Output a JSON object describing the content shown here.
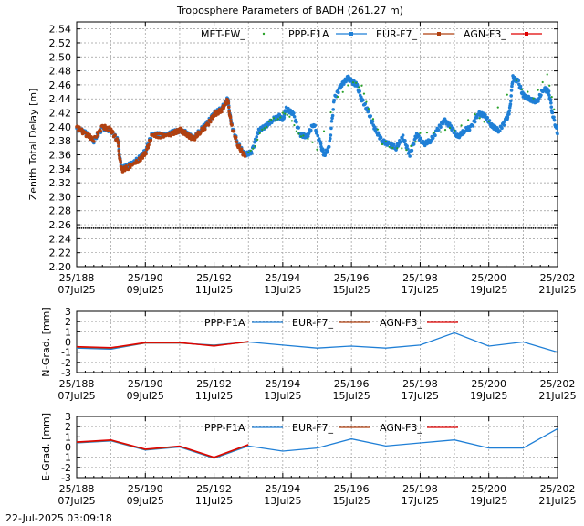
{
  "footer": {
    "timestamp": "22-Jul-2025 03:09:18"
  },
  "colors": {
    "met": "#2aa22a",
    "ppp": "#1f7fd6",
    "eur": "#b04010",
    "agn": "#e00000",
    "ref": "#000000",
    "grid": "#9a9a9a"
  },
  "chart_data": [
    {
      "id": "ztd",
      "type": "line",
      "title": "Troposphere Parameters of BADH (261.27 m)",
      "ylabel": "Zenith Total Delay [m]",
      "xlim": [
        0,
        14
      ],
      "ylim": [
        2.2,
        2.55
      ],
      "yticks": [
        2.2,
        2.22,
        2.24,
        2.26,
        2.28,
        2.3,
        2.32,
        2.34,
        2.36,
        2.38,
        2.4,
        2.42,
        2.44,
        2.46,
        2.48,
        2.5,
        2.52,
        2.54
      ],
      "xticks": [
        {
          "x": 0,
          "line1": "25/188",
          "line2": "07Jul25"
        },
        {
          "x": 2,
          "line1": "25/190",
          "line2": "09Jul25"
        },
        {
          "x": 4,
          "line1": "25/192",
          "line2": "11Jul25"
        },
        {
          "x": 6,
          "line1": "25/194",
          "line2": "13Jul25"
        },
        {
          "x": 8,
          "line1": "25/196",
          "line2": "15Jul25"
        },
        {
          "x": 10,
          "line1": "25/198",
          "line2": "17Jul25"
        },
        {
          "x": 12,
          "line1": "25/200",
          "line2": "19Jul25"
        },
        {
          "x": 14,
          "line1": "25/202",
          "line2": "21Jul25"
        }
      ],
      "grid": true,
      "legend": [
        {
          "label": "MET-FW_",
          "style": "dots",
          "color": "#2aa22a"
        },
        {
          "label": "PPP-F1A",
          "style": "line-marker",
          "color": "#1f7fd6"
        },
        {
          "label": "EUR-F7_",
          "style": "line-marker",
          "color": "#b04010"
        },
        {
          "label": "AGN-F3_",
          "style": "line-marker",
          "color": "#e00000"
        }
      ],
      "reference_line": {
        "y": 2.255,
        "style": "dots"
      },
      "series": [
        {
          "name": "PPP-F1A",
          "style": "markers",
          "color": "#1f7fd6",
          "points": [
            [
              0.0,
              2.398
            ],
            [
              0.25,
              2.392
            ],
            [
              0.5,
              2.38
            ],
            [
              0.75,
              2.398
            ],
            [
              1.0,
              2.395
            ],
            [
              1.2,
              2.38
            ],
            [
              1.3,
              2.34
            ],
            [
              1.5,
              2.345
            ],
            [
              1.8,
              2.355
            ],
            [
              2.0,
              2.365
            ],
            [
              2.2,
              2.39
            ],
            [
              2.5,
              2.388
            ],
            [
              2.8,
              2.392
            ],
            [
              3.0,
              2.395
            ],
            [
              3.2,
              2.392
            ],
            [
              3.4,
              2.383
            ],
            [
              3.6,
              2.395
            ],
            [
              3.8,
              2.405
            ],
            [
              4.0,
              2.42
            ],
            [
              4.2,
              2.425
            ],
            [
              4.4,
              2.44
            ],
            [
              4.5,
              2.405
            ],
            [
              4.7,
              2.375
            ],
            [
              4.9,
              2.36
            ],
            [
              5.1,
              2.365
            ],
            [
              5.3,
              2.395
            ],
            [
              5.5,
              2.4
            ],
            [
              5.7,
              2.41
            ],
            [
              5.9,
              2.415
            ],
            [
              6.0,
              2.41
            ],
            [
              6.1,
              2.425
            ],
            [
              6.3,
              2.42
            ],
            [
              6.5,
              2.39
            ],
            [
              6.7,
              2.385
            ],
            [
              6.9,
              2.405
            ],
            [
              7.1,
              2.375
            ],
            [
              7.2,
              2.36
            ],
            [
              7.35,
              2.37
            ],
            [
              7.5,
              2.44
            ],
            [
              7.7,
              2.46
            ],
            [
              7.9,
              2.47
            ],
            [
              8.0,
              2.465
            ],
            [
              8.15,
              2.46
            ],
            [
              8.3,
              2.44
            ],
            [
              8.5,
              2.42
            ],
            [
              8.7,
              2.395
            ],
            [
              8.9,
              2.38
            ],
            [
              9.1,
              2.375
            ],
            [
              9.3,
              2.37
            ],
            [
              9.5,
              2.385
            ],
            [
              9.7,
              2.36
            ],
            [
              9.9,
              2.39
            ],
            [
              10.1,
              2.375
            ],
            [
              10.3,
              2.38
            ],
            [
              10.5,
              2.395
            ],
            [
              10.7,
              2.41
            ],
            [
              10.9,
              2.4
            ],
            [
              11.1,
              2.385
            ],
            [
              11.3,
              2.395
            ],
            [
              11.5,
              2.4
            ],
            [
              11.7,
              2.42
            ],
            [
              11.9,
              2.415
            ],
            [
              12.1,
              2.4
            ],
            [
              12.3,
              2.395
            ],
            [
              12.5,
              2.41
            ],
            [
              12.6,
              2.42
            ],
            [
              12.7,
              2.47
            ],
            [
              12.85,
              2.465
            ],
            [
              13.0,
              2.445
            ],
            [
              13.2,
              2.44
            ],
            [
              13.4,
              2.435
            ],
            [
              13.6,
              2.455
            ],
            [
              13.75,
              2.45
            ],
            [
              13.85,
              2.42
            ],
            [
              14.0,
              2.39
            ]
          ]
        },
        {
          "name": "EUR-F7_",
          "style": "markers",
          "color": "#b04010",
          "points": [
            [
              0.0,
              2.4
            ],
            [
              0.25,
              2.39
            ],
            [
              0.5,
              2.382
            ],
            [
              0.75,
              2.4
            ],
            [
              1.0,
              2.396
            ],
            [
              1.2,
              2.378
            ],
            [
              1.3,
              2.338
            ],
            [
              1.5,
              2.342
            ],
            [
              1.8,
              2.352
            ],
            [
              2.0,
              2.362
            ],
            [
              2.2,
              2.388
            ],
            [
              2.5,
              2.387
            ],
            [
              2.8,
              2.39
            ],
            [
              3.0,
              2.396
            ],
            [
              3.2,
              2.39
            ],
            [
              3.4,
              2.382
            ],
            [
              3.6,
              2.393
            ],
            [
              3.8,
              2.402
            ],
            [
              4.0,
              2.418
            ],
            [
              4.2,
              2.423
            ],
            [
              4.4,
              2.438
            ],
            [
              4.5,
              2.403
            ],
            [
              4.7,
              2.373
            ],
            [
              4.9,
              2.358
            ]
          ]
        },
        {
          "name": "MET-FW_",
          "style": "dots",
          "color": "#2aa22a",
          "points": [
            [
              5.0,
              2.362
            ],
            [
              5.2,
              2.372
            ],
            [
              5.4,
              2.398
            ],
            [
              5.6,
              2.405
            ],
            [
              5.8,
              2.412
            ],
            [
              6.0,
              2.418
            ],
            [
              6.2,
              2.415
            ],
            [
              6.4,
              2.395
            ],
            [
              6.6,
              2.385
            ],
            [
              7.0,
              2.37
            ],
            [
              7.6,
              2.445
            ],
            [
              8.05,
              2.462
            ],
            [
              8.3,
              2.458
            ],
            [
              8.5,
              2.425
            ],
            [
              8.9,
              2.378
            ],
            [
              9.2,
              2.372
            ],
            [
              9.6,
              2.368
            ],
            [
              10.0,
              2.388
            ],
            [
              10.6,
              2.392
            ],
            [
              11.0,
              2.398
            ],
            [
              11.6,
              2.418
            ],
            [
              12.0,
              2.405
            ],
            [
              12.8,
              2.465
            ],
            [
              13.3,
              2.438
            ],
            [
              13.7,
              2.475
            ],
            [
              13.9,
              2.425
            ]
          ]
        }
      ]
    },
    {
      "id": "ngrad",
      "type": "line",
      "ylabel": "N-Grad. [mm]",
      "xlim": [
        0,
        14
      ],
      "ylim": [
        -3,
        3
      ],
      "yticks": [
        -3,
        -2,
        -1,
        0,
        1,
        2,
        3
      ],
      "zero_line": true,
      "legend": [
        {
          "label": "PPP-F1A",
          "style": "line",
          "color": "#1f7fd6"
        },
        {
          "label": "EUR-F7_",
          "style": "line",
          "color": "#b04010"
        },
        {
          "label": "AGN-F3_",
          "style": "line",
          "color": "#e00000"
        }
      ],
      "series": [
        {
          "name": "PPP-F1A",
          "style": "line",
          "color": "#1f7fd6",
          "points": [
            [
              0,
              -0.6
            ],
            [
              1,
              -0.7
            ],
            [
              2,
              -0.1
            ],
            [
              3,
              -0.1
            ],
            [
              4,
              -0.3
            ],
            [
              5,
              0.0
            ],
            [
              6,
              -0.3
            ],
            [
              7,
              -0.6
            ],
            [
              8,
              -0.4
            ],
            [
              9,
              -0.6
            ],
            [
              10,
              -0.3
            ],
            [
              11,
              0.9
            ],
            [
              12,
              -0.4
            ],
            [
              13,
              0.0
            ],
            [
              14,
              -1.0
            ]
          ]
        },
        {
          "name": "EUR-F7_",
          "style": "line",
          "color": "#b04010",
          "points": [
            [
              0,
              -0.5
            ],
            [
              1,
              -0.6
            ],
            [
              2,
              -0.1
            ],
            [
              3,
              -0.1
            ],
            [
              4,
              -0.35
            ],
            [
              5,
              0.0
            ]
          ]
        },
        {
          "name": "AGN-F3_",
          "style": "line",
          "color": "#e00000",
          "points": [
            [
              0,
              -0.45
            ],
            [
              1,
              -0.55
            ],
            [
              2,
              -0.05
            ],
            [
              3,
              -0.05
            ],
            [
              4,
              -0.4
            ],
            [
              5,
              0.05
            ]
          ]
        }
      ]
    },
    {
      "id": "egrad",
      "type": "line",
      "ylabel": "E-Grad. [mm]",
      "xlim": [
        0,
        14
      ],
      "ylim": [
        -3,
        3
      ],
      "yticks": [
        -3,
        -2,
        -1,
        0,
        1,
        2,
        3
      ],
      "zero_line": true,
      "legend": [
        {
          "label": "PPP-F1A",
          "style": "line",
          "color": "#1f7fd6"
        },
        {
          "label": "EUR-F7_",
          "style": "line",
          "color": "#b04010"
        },
        {
          "label": "AGN-F3_",
          "style": "line",
          "color": "#e00000"
        }
      ],
      "series": [
        {
          "name": "PPP-F1A",
          "style": "line",
          "color": "#1f7fd6",
          "points": [
            [
              0,
              0.4
            ],
            [
              1,
              0.6
            ],
            [
              2,
              -0.3
            ],
            [
              3,
              0.0
            ],
            [
              4,
              -1.1
            ],
            [
              5,
              0.1
            ],
            [
              6,
              -0.4
            ],
            [
              7,
              -0.1
            ],
            [
              8,
              0.8
            ],
            [
              9,
              0.1
            ],
            [
              10,
              0.4
            ],
            [
              11,
              0.7
            ],
            [
              12,
              -0.1
            ],
            [
              13,
              -0.1
            ],
            [
              14,
              1.8
            ]
          ]
        },
        {
          "name": "EUR-F7_",
          "style": "line",
          "color": "#b04010",
          "points": [
            [
              0,
              0.45
            ],
            [
              1,
              0.65
            ],
            [
              2,
              -0.25
            ],
            [
              3,
              0.05
            ],
            [
              4,
              -1.05
            ],
            [
              5,
              0.2
            ]
          ]
        },
        {
          "name": "AGN-F3_",
          "style": "line",
          "color": "#e00000",
          "points": [
            [
              0,
              0.5
            ],
            [
              1,
              0.7
            ],
            [
              2,
              -0.2
            ],
            [
              3,
              0.1
            ],
            [
              4,
              -1.0
            ],
            [
              5,
              0.25
            ]
          ]
        }
      ]
    }
  ]
}
